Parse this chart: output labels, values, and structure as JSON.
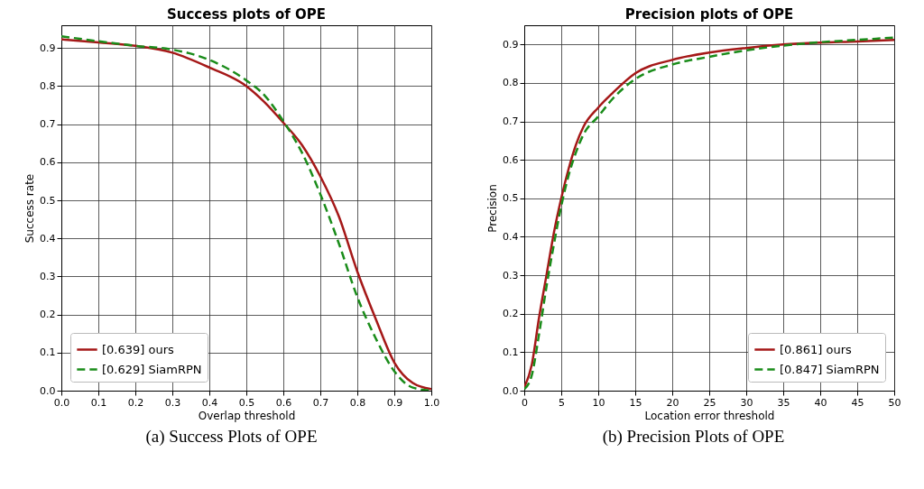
{
  "chart_data": [
    {
      "type": "line",
      "title": "Success plots of OPE",
      "xlabel": "Overlap threshold",
      "ylabel": "Success rate",
      "annotations": [
        "(a) Success Plots of OPE"
      ],
      "legend": "bottom left",
      "grid": true,
      "xlim": [
        0,
        1
      ],
      "ylim": [
        0,
        0.96
      ],
      "xticks": [
        {
          "value": 0,
          "label": "0.0"
        },
        0.1,
        0.2,
        0.3,
        0.4,
        0.5,
        0.6,
        0.7,
        0.8,
        0.9,
        {
          "value": 1,
          "label": "1.0"
        }
      ],
      "yticks": [
        {
          "value": 0,
          "label": "0.0"
        },
        0.1,
        0.2,
        0.3,
        0.4,
        0.5,
        0.6,
        0.7,
        0.8,
        0.9
      ],
      "x": [
        0,
        0.1,
        0.2,
        0.3,
        0.4,
        0.5,
        0.55,
        0.6,
        0.65,
        0.7,
        0.75,
        0.8,
        0.85,
        0.9,
        0.95,
        1
      ],
      "series": [
        {
          "name": "[0.639] ours",
          "color": "#a51818",
          "line_style": "solid",
          "values": [
            0.923,
            0.915,
            0.906,
            0.888,
            0.849,
            0.8,
            0.757,
            0.704,
            0.646,
            0.563,
            0.458,
            0.313,
            0.188,
            0.074,
            0.02,
            0.004
          ]
        },
        {
          "name": "[0.629] SiamRPN",
          "color": "#1a8c1a",
          "line_style": "dashed",
          "values": [
            0.931,
            0.918,
            0.906,
            0.896,
            0.869,
            0.815,
            0.775,
            0.708,
            0.626,
            0.516,
            0.387,
            0.246,
            0.137,
            0.051,
            0.008,
            0
          ]
        }
      ]
    },
    {
      "type": "line",
      "title": "Precision plots of OPE",
      "xlabel": "Location error threshold",
      "ylabel": "Precision",
      "annotations": [
        "(b) Precision Plots of OPE"
      ],
      "legend": "bottom right",
      "grid": true,
      "xlim": [
        0,
        50
      ],
      "ylim": [
        0,
        0.95
      ],
      "xticks": [
        0,
        5,
        10,
        15,
        20,
        25,
        30,
        35,
        40,
        45,
        50
      ],
      "yticks": [
        {
          "value": 0,
          "label": "0.0"
        },
        0.1,
        0.2,
        0.3,
        0.4,
        0.5,
        0.6,
        0.7,
        0.8,
        0.9
      ],
      "x": [
        0,
        1,
        2,
        3,
        4,
        5,
        6,
        7,
        8,
        10,
        12,
        15,
        20,
        25,
        30,
        35,
        40,
        45,
        50
      ],
      "series": [
        {
          "name": "[0.861] ours",
          "color": "#a51818",
          "line_style": "solid",
          "values": [
            0.008,
            0.066,
            0.19,
            0.3,
            0.41,
            0.5,
            0.577,
            0.64,
            0.686,
            0.736,
            0.775,
            0.825,
            0.86,
            0.879,
            0.891,
            0.9,
            0.905,
            0.908,
            0.912
          ]
        },
        {
          "name": "[0.847] SiamRPN",
          "color": "#1a8c1a",
          "line_style": "dashed",
          "values": [
            0.004,
            0.039,
            0.147,
            0.27,
            0.38,
            0.48,
            0.56,
            0.62,
            0.666,
            0.713,
            0.76,
            0.81,
            0.848,
            0.868,
            0.885,
            0.897,
            0.906,
            0.912,
            0.918
          ]
        }
      ]
    }
  ]
}
